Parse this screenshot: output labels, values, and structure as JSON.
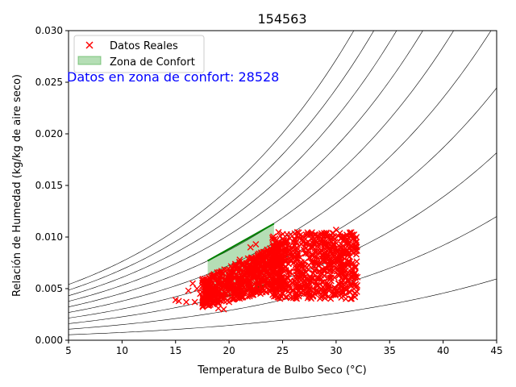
{
  "chart_data": {
    "type": "scatter",
    "title": "154563",
    "xlabel": "Temperatura de Bulbo Seco (°C)",
    "ylabel": "Relación de Humedad (kg/kg de aire seco)",
    "xlim": [
      5,
      45
    ],
    "ylim": [
      0,
      0.03
    ],
    "x_ticks": [
      "5",
      "10",
      "15",
      "20",
      "25",
      "30",
      "35",
      "40",
      "45"
    ],
    "y_ticks": [
      "0.000",
      "0.005",
      "0.010",
      "0.015",
      "0.020",
      "0.025",
      "0.030"
    ],
    "grid": false,
    "legend_position": "top-left",
    "annotation": {
      "text": "Datos en zona de confort: 28528",
      "color": "#0000ff"
    },
    "series": [
      {
        "name": "Datos Reales",
        "marker": "x",
        "color": "#ff0000",
        "clusters": [
          {
            "x_range": [
              17.5,
              25
            ],
            "y_range": [
              0.0032,
              0.0095
            ]
          },
          {
            "x_range": [
              24,
              32
            ],
            "y_range": [
              0.004,
              0.0105
            ]
          }
        ],
        "points": [
          [
            15,
            0.0039
          ],
          [
            15.3,
            0.0038
          ],
          [
            16.0,
            0.0037
          ],
          [
            16.2,
            0.0048
          ],
          [
            16.6,
            0.0055
          ],
          [
            16.8,
            0.0037
          ],
          [
            17.0,
            0.005
          ],
          [
            17.3,
            0.0045
          ],
          [
            17.6,
            0.0056
          ],
          [
            17.9,
            0.0042
          ],
          [
            18.5,
            0.0035
          ],
          [
            19.0,
            0.0031
          ],
          [
            19.5,
            0.003
          ],
          [
            20.0,
            0.0037
          ],
          [
            21.0,
            0.0078
          ],
          [
            22.0,
            0.009
          ],
          [
            22.5,
            0.0093
          ],
          [
            23.0,
            0.0085
          ],
          [
            24.0,
            0.005
          ],
          [
            25.0,
            0.008
          ],
          [
            26.0,
            0.0041
          ],
          [
            26.5,
            0.01
          ],
          [
            27.5,
            0.0044
          ],
          [
            28.0,
            0.0102
          ],
          [
            29.0,
            0.0045
          ],
          [
            30.0,
            0.0107
          ],
          [
            30.5,
            0.006
          ],
          [
            31.0,
            0.0095
          ],
          [
            31.5,
            0.009
          ],
          [
            31.8,
            0.0089
          ]
        ]
      },
      {
        "name": "Zona de Confort",
        "color": "#2ca02c",
        "boundary": [
          [
            18,
            0.0037
          ],
          [
            24.2,
            0.0056
          ],
          [
            24.2,
            0.0113
          ],
          [
            18,
            0.0077
          ]
        ]
      }
    ],
    "rh_curves": [
      0.1,
      0.2,
      0.3,
      0.4,
      0.5,
      0.6,
      0.7,
      0.8,
      0.9,
      1.0
    ]
  }
}
